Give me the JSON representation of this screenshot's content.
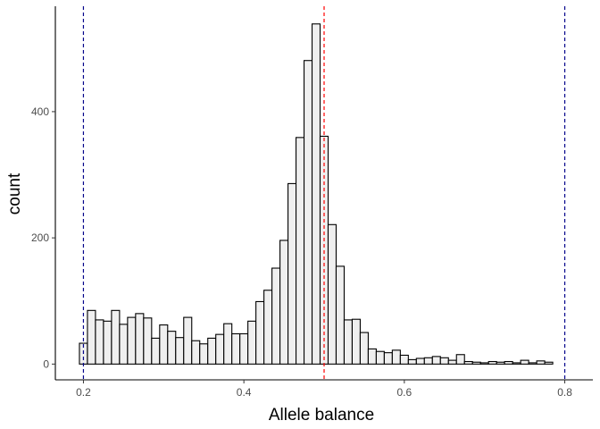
{
  "chart_data": {
    "type": "bar",
    "xlabel": "Allele balance",
    "ylabel": "count",
    "xlim": [
      0.165,
      0.835
    ],
    "ylim": [
      -25,
      567
    ],
    "x_ticks": [
      {
        "value": 0.2,
        "label": "0.2"
      },
      {
        "value": 0.4,
        "label": "0.4"
      },
      {
        "value": 0.6,
        "label": "0.6"
      },
      {
        "value": 0.8,
        "label": "0.8"
      }
    ],
    "y_ticks": [
      {
        "value": 0,
        "label": "0"
      },
      {
        "value": 200,
        "label": "200"
      },
      {
        "value": 400,
        "label": "400"
      }
    ],
    "bin_start": 0.195,
    "bin_width": 0.01,
    "values": [
      33,
      85,
      70,
      68,
      85,
      63,
      74,
      80,
      73,
      41,
      62,
      52,
      42,
      74,
      37,
      32,
      41,
      47,
      64,
      48,
      48,
      68,
      99,
      117,
      152,
      196,
      286,
      359,
      481,
      539,
      361,
      221,
      155,
      70,
      71,
      50,
      24,
      20,
      18,
      22,
      14,
      7,
      9,
      10,
      12,
      10,
      6,
      15,
      4,
      3,
      2,
      4,
      3,
      4,
      2,
      6,
      2,
      5,
      3
    ],
    "grid": false,
    "reference_lines": [
      {
        "x": 0.2,
        "color": "#00008b",
        "style": "dashed"
      },
      {
        "x": 0.5,
        "color": "#ff0000",
        "style": "dashed"
      },
      {
        "x": 0.8,
        "color": "#00008b",
        "style": "dashed"
      }
    ],
    "bar_fill": "#efefef",
    "bar_stroke": "#000000"
  }
}
